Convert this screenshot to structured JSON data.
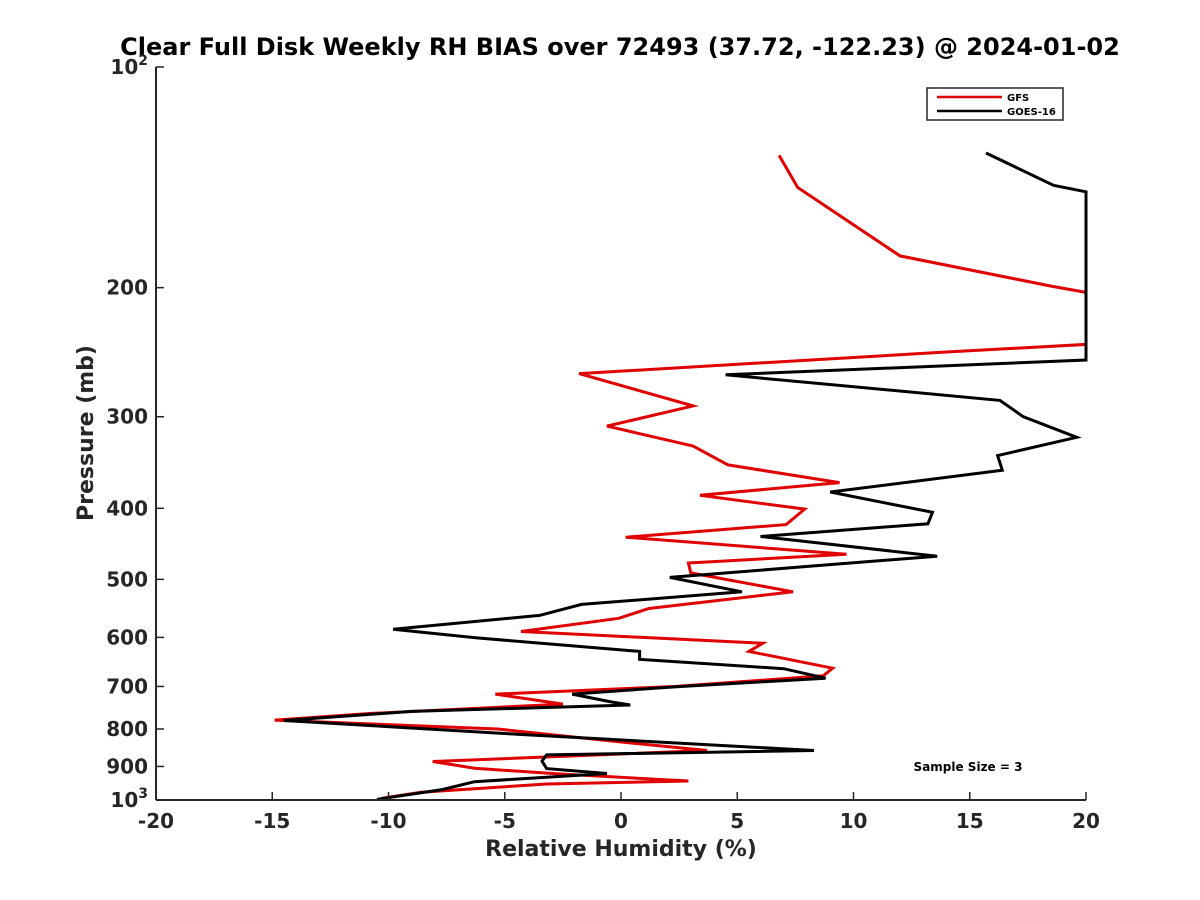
{
  "chart_data": {
    "type": "line",
    "title": "Clear Full Disk Weekly RH BIAS over 72493 (37.72, -122.23) @ 2024-01-02",
    "xlabel": "Relative Humidity (%)",
    "ylabel": "Pressure (mb)",
    "xlim": [
      -20,
      20
    ],
    "ylim": [
      1000,
      100
    ],
    "yscale": "log",
    "x_ticks": [
      -20,
      -15,
      -10,
      -5,
      0,
      5,
      10,
      15,
      20
    ],
    "y_ticks": [
      {
        "value": 100,
        "base": "10",
        "exp": "2"
      },
      {
        "value": 200,
        "label": "200"
      },
      {
        "value": 300,
        "label": "300"
      },
      {
        "value": 400,
        "label": "400"
      },
      {
        "value": 500,
        "label": "500"
      },
      {
        "value": 600,
        "label": "600"
      },
      {
        "value": 700,
        "label": "700"
      },
      {
        "value": 800,
        "label": "800"
      },
      {
        "value": 900,
        "label": "900"
      },
      {
        "value": 1000,
        "base": "10",
        "exp": "3"
      }
    ],
    "legend_position": "top-right",
    "annotation": "Sample Size = 3",
    "series": [
      {
        "name": "GFS",
        "color": "#e00000",
        "points": [
          [
            6.8,
            132
          ],
          [
            7.6,
            146
          ],
          [
            12.0,
            181
          ],
          [
            18.5,
            199
          ],
          [
            20.0,
            203
          ],
          [
            20.0,
            239
          ],
          [
            13.8,
            245
          ],
          [
            -1.8,
            262
          ],
          [
            3.1,
            290
          ],
          [
            -0.6,
            309
          ],
          [
            3.1,
            329
          ],
          [
            4.6,
            349
          ],
          [
            9.4,
            369
          ],
          [
            3.4,
            384
          ],
          [
            7.9,
            401
          ],
          [
            7.1,
            421
          ],
          [
            0.2,
            438
          ],
          [
            9.7,
            462
          ],
          [
            2.9,
            475
          ],
          [
            3.0,
            490
          ],
          [
            7.4,
            520
          ],
          [
            1.2,
            548
          ],
          [
            -0.1,
            565
          ],
          [
            -4.3,
            589
          ],
          [
            6.1,
            611
          ],
          [
            5.5,
            627
          ],
          [
            9.1,
            661
          ],
          [
            8.7,
            677
          ],
          [
            2.3,
            700
          ],
          [
            -5.4,
            717
          ],
          [
            -2.5,
            740
          ],
          [
            -10.8,
            762
          ],
          [
            -14.9,
            778
          ],
          [
            -5.3,
            800
          ],
          [
            -0.2,
            832
          ],
          [
            3.7,
            856
          ],
          [
            -8.1,
            886
          ],
          [
            -6.3,
            905
          ],
          [
            -2.8,
            921
          ],
          [
            2.9,
            942
          ],
          [
            -3.2,
            951
          ],
          [
            -8.6,
            976
          ],
          [
            -10.3,
            995
          ]
        ]
      },
      {
        "name": "GOES-16",
        "color": "#000000",
        "points": [
          [
            15.7,
            131
          ],
          [
            18.6,
            145
          ],
          [
            20.0,
            148
          ],
          [
            20.0,
            251
          ],
          [
            4.5,
            263
          ],
          [
            16.3,
            285
          ],
          [
            17.3,
            300
          ],
          [
            19.6,
            320
          ],
          [
            16.2,
            339
          ],
          [
            16.4,
            355
          ],
          [
            9.0,
            380
          ],
          [
            13.4,
            405
          ],
          [
            13.2,
            420
          ],
          [
            6.0,
            437
          ],
          [
            13.6,
            465
          ],
          [
            8.1,
            480
          ],
          [
            2.1,
            497
          ],
          [
            5.2,
            520
          ],
          [
            -1.7,
            541
          ],
          [
            -3.5,
            560
          ],
          [
            -9.8,
            585
          ],
          [
            -6.2,
            601
          ],
          [
            0.8,
            627
          ],
          [
            0.8,
            643
          ],
          [
            7.0,
            662
          ],
          [
            8.8,
            682
          ],
          [
            2.3,
            701
          ],
          [
            -2.1,
            717
          ],
          [
            -0.4,
            735
          ],
          [
            0.4,
            742
          ],
          [
            -9.0,
            757
          ],
          [
            -14.5,
            779
          ],
          [
            -5.2,
            811
          ],
          [
            8.3,
            856
          ],
          [
            -3.2,
            868
          ],
          [
            -3.4,
            885
          ],
          [
            -3.2,
            906
          ],
          [
            -0.6,
            920
          ],
          [
            -6.3,
            944
          ],
          [
            -7.7,
            968
          ],
          [
            -10.5,
            998
          ]
        ]
      }
    ]
  }
}
